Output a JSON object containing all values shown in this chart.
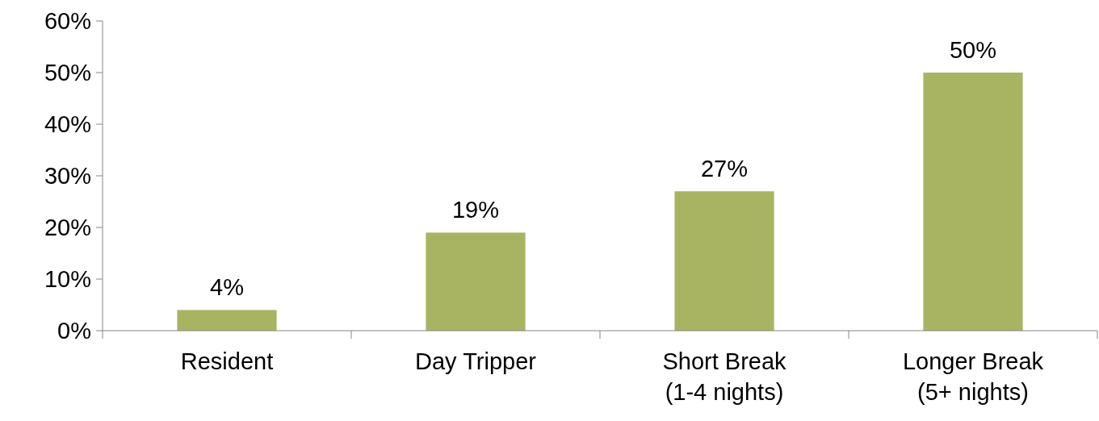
{
  "chart_data": {
    "type": "bar",
    "categories": [
      "Resident",
      "Day Tripper",
      "Short Break\n(1-4 nights)",
      "Longer Break\n(5+ nights)"
    ],
    "values": [
      4,
      19,
      27,
      50
    ],
    "value_labels": [
      "4%",
      "19%",
      "27%",
      "50%"
    ],
    "color": "#a9b462",
    "ylim": [
      0,
      60
    ],
    "yticks": [
      {
        "value": 0,
        "label": "0%"
      },
      {
        "value": 10,
        "label": "10%"
      },
      {
        "value": 20,
        "label": "20%"
      },
      {
        "value": 30,
        "label": "30%"
      },
      {
        "value": 40,
        "label": "40%"
      },
      {
        "value": 50,
        "label": "50%"
      },
      {
        "value": 60,
        "label": "60%"
      }
    ],
    "grid": false
  }
}
